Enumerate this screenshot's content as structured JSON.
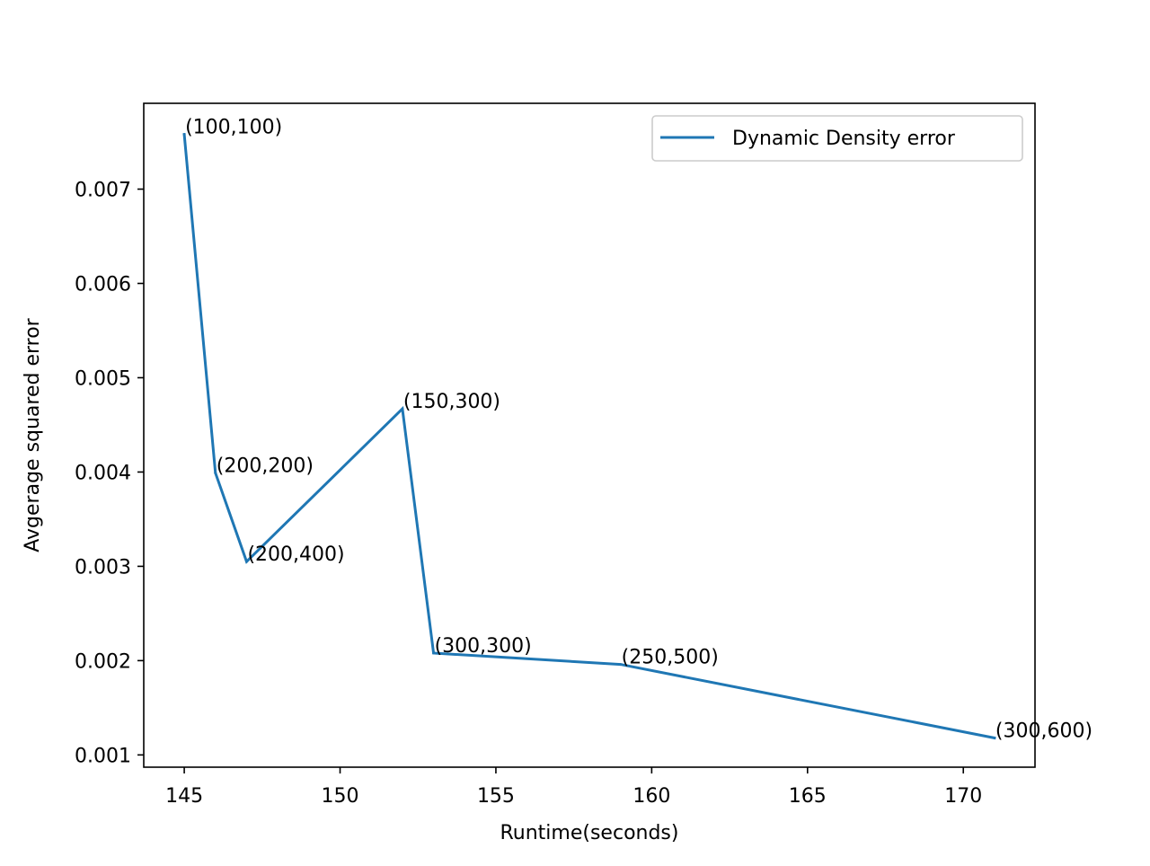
{
  "chart_data": {
    "type": "line",
    "title": "",
    "xlabel": "Runtime(seconds)",
    "ylabel": "Avgerage squared error",
    "xlim": [
      143.7,
      172.3
    ],
    "ylim": [
      0.00087,
      0.00791
    ],
    "xticks": [
      145,
      150,
      155,
      160,
      165,
      170
    ],
    "xtick_labels": [
      "145",
      "150",
      "155",
      "160",
      "165",
      "170"
    ],
    "yticks": [
      0.001,
      0.002,
      0.003,
      0.004,
      0.005,
      0.006,
      0.007
    ],
    "ytick_labels": [
      "0.001",
      "0.002",
      "0.003",
      "0.004",
      "0.005",
      "0.006",
      "0.007"
    ],
    "grid": false,
    "legend_position": "upper right",
    "series": [
      {
        "name": "Dynamic Density error",
        "color": "#1f77b4",
        "x": [
          145,
          146,
          147,
          152,
          153,
          159,
          171
        ],
        "y": [
          0.00758,
          0.00399,
          0.00305,
          0.00467,
          0.00208,
          0.00196,
          0.00118
        ],
        "point_labels": [
          "(100,100)",
          "(200,200)",
          "(200,400)",
          "(150,300)",
          "(300,300)",
          "(250,500)",
          "(300,600)"
        ]
      }
    ]
  }
}
